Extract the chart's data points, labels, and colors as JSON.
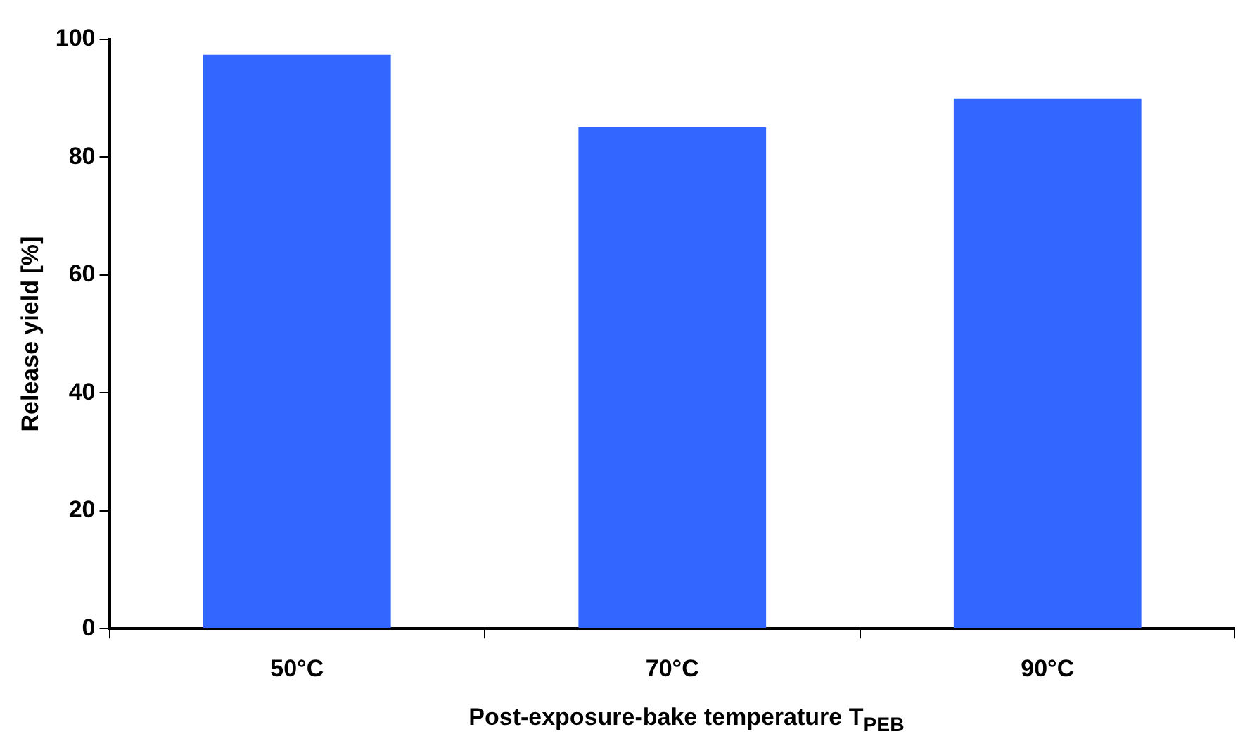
{
  "chart_data": {
    "type": "bar",
    "xlabel": "Post-exposure-bake temperature T$_{PEB}$",
    "ylabel": "Release yield [%]",
    "categories": [
      "50°C",
      "70°C",
      "90°C"
    ],
    "values": [
      97.4,
      85.1,
      90.0
    ],
    "color": "#3366ff",
    "ylim": [
      0,
      100
    ],
    "yticks": [
      0,
      20,
      40,
      60,
      80,
      100
    ],
    "grid": false,
    "legend": false
  }
}
